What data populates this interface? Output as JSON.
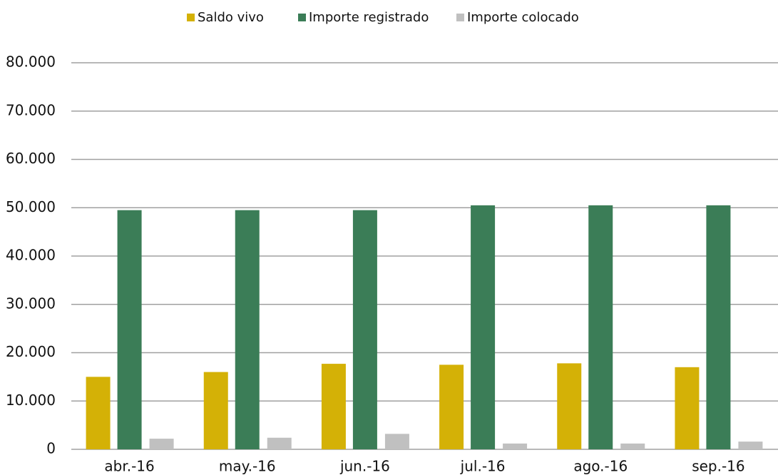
{
  "chart_data": {
    "type": "bar",
    "categories": [
      "abr.-16",
      "may.-16",
      "jun.-16",
      "jul.-16",
      "ago.-16",
      "sep.-16"
    ],
    "series": [
      {
        "name": "Saldo vivo",
        "color": "#d4b106",
        "values": [
          15000,
          16000,
          17700,
          17500,
          17800,
          17000
        ]
      },
      {
        "name": "Importe registrado",
        "color": "#3b7d57",
        "values": [
          49500,
          49500,
          49500,
          50500,
          50500,
          50500
        ]
      },
      {
        "name": "Importe colocado",
        "color": "#c0c0c0",
        "values": [
          2200,
          2400,
          3200,
          1200,
          1200,
          1600
        ]
      }
    ],
    "ylim": [
      0,
      80000
    ],
    "yticks": [
      0,
      {
        "value": 10000,
        "label": "10.000"
      },
      {
        "value": 20000,
        "label": "20.000"
      },
      {
        "value": 30000,
        "label": "30.000"
      },
      {
        "value": 40000,
        "label": "40.000"
      },
      {
        "value": 50000,
        "label": "50.000"
      },
      {
        "value": 60000,
        "label": "60.000"
      },
      {
        "value": 70000,
        "label": "70.000"
      },
      {
        "value": 80000,
        "label": "80.000"
      }
    ],
    "grid": true,
    "legend": "top"
  }
}
